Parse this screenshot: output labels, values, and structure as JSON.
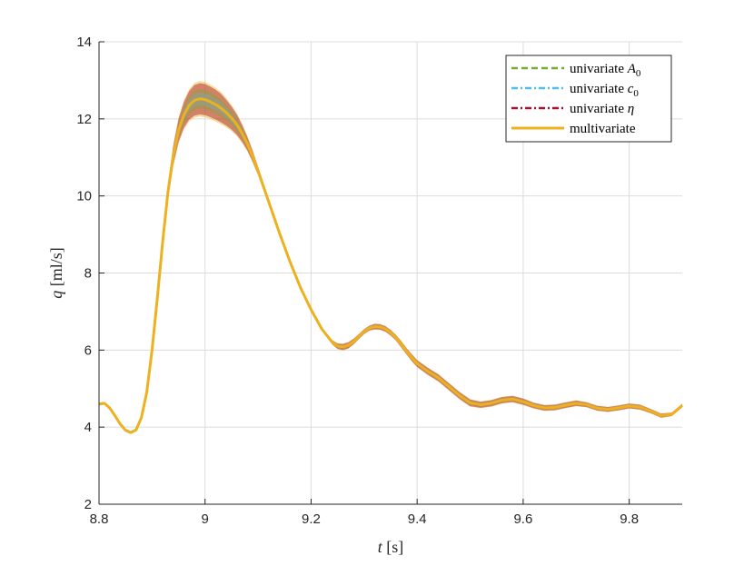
{
  "chart_data": {
    "type": "line",
    "xlabel": {
      "var": "t",
      "unit": " [s]"
    },
    "ylabel": {
      "var": "q",
      "unit": " [ml/s]"
    },
    "xlim": [
      8.8,
      9.9
    ],
    "ylim": [
      2,
      14
    ],
    "xticks": [
      8.8,
      9,
      9.2,
      9.4,
      9.6,
      9.8
    ],
    "xtick_labels": [
      "8.8",
      "9",
      "9.2",
      "9.4",
      "9.6",
      "9.8"
    ],
    "yticks": [
      2,
      4,
      6,
      8,
      10,
      12,
      14
    ],
    "ytick_labels": [
      "2",
      "4",
      "6",
      "8",
      "10",
      "12",
      "14"
    ],
    "grid": true,
    "legend_position": "top-right",
    "x": [
      8.8,
      8.81,
      8.82,
      8.83,
      8.84,
      8.85,
      8.86,
      8.87,
      8.88,
      8.89,
      8.9,
      8.91,
      8.92,
      8.93,
      8.94,
      8.95,
      8.96,
      8.97,
      8.98,
      8.99,
      9.0,
      9.01,
      9.02,
      9.03,
      9.04,
      9.05,
      9.06,
      9.07,
      9.08,
      9.09,
      9.1,
      9.12,
      9.14,
      9.16,
      9.18,
      9.2,
      9.22,
      9.24,
      9.25,
      9.26,
      9.27,
      9.28,
      9.29,
      9.3,
      9.31,
      9.32,
      9.33,
      9.34,
      9.35,
      9.36,
      9.37,
      9.38,
      9.39,
      9.4,
      9.42,
      9.44,
      9.46,
      9.48,
      9.5,
      9.52,
      9.54,
      9.56,
      9.58,
      9.6,
      9.62,
      9.64,
      9.66,
      9.68,
      9.7,
      9.72,
      9.74,
      9.76,
      9.78,
      9.8,
      9.82,
      9.84,
      9.86,
      9.88,
      9.9
    ],
    "band_halfwidth": [
      0.03,
      0.03,
      0.03,
      0.03,
      0.03,
      0.03,
      0.03,
      0.03,
      0.04,
      0.06,
      0.08,
      0.12,
      0.16,
      0.22,
      0.28,
      0.34,
      0.38,
      0.42,
      0.45,
      0.46,
      0.46,
      0.45,
      0.44,
      0.42,
      0.38,
      0.34,
      0.3,
      0.25,
      0.2,
      0.16,
      0.12,
      0.08,
      0.05,
      0.04,
      0.03,
      0.03,
      0.04,
      0.06,
      0.08,
      0.09,
      0.09,
      0.08,
      0.07,
      0.07,
      0.07,
      0.08,
      0.08,
      0.08,
      0.08,
      0.08,
      0.09,
      0.09,
      0.1,
      0.1,
      0.1,
      0.1,
      0.1,
      0.1,
      0.1,
      0.09,
      0.09,
      0.09,
      0.09,
      0.09,
      0.08,
      0.08,
      0.08,
      0.08,
      0.08,
      0.07,
      0.07,
      0.07,
      0.07,
      0.07,
      0.07,
      0.06,
      0.06,
      0.05,
      0.05
    ],
    "series": [
      {
        "label_main": "univariate ",
        "label_math": "A",
        "label_sub": "0",
        "color": "#77ac30",
        "dash": "7,4",
        "offset": 0.0,
        "y": [
          4.6,
          4.62,
          4.5,
          4.3,
          4.08,
          3.92,
          3.86,
          3.93,
          4.25,
          4.9,
          6.0,
          7.35,
          8.8,
          10.1,
          11.05,
          11.7,
          12.1,
          12.35,
          12.48,
          12.52,
          12.5,
          12.44,
          12.37,
          12.28,
          12.16,
          12.02,
          11.85,
          11.62,
          11.35,
          11.02,
          10.65,
          9.85,
          9.05,
          8.3,
          7.62,
          7.05,
          6.55,
          6.2,
          6.1,
          6.08,
          6.12,
          6.22,
          6.35,
          6.48,
          6.57,
          6.61,
          6.6,
          6.55,
          6.45,
          6.32,
          6.15,
          5.97,
          5.8,
          5.65,
          5.45,
          5.28,
          5.05,
          4.82,
          4.63,
          4.58,
          4.62,
          4.7,
          4.73,
          4.66,
          4.56,
          4.5,
          4.51,
          4.57,
          4.62,
          4.58,
          4.49,
          4.46,
          4.5,
          4.55,
          4.52,
          4.42,
          4.3,
          4.33,
          4.56
        ]
      },
      {
        "label_main": "univariate ",
        "label_math": "c",
        "label_sub": "0",
        "color": "#4dbeee",
        "dash": "7,3,2,3",
        "offset": 0.01,
        "y": [
          4.6,
          4.62,
          4.5,
          4.3,
          4.08,
          3.92,
          3.86,
          3.93,
          4.25,
          4.9,
          6.0,
          7.35,
          8.8,
          10.1,
          11.05,
          11.7,
          12.1,
          12.35,
          12.48,
          12.52,
          12.5,
          12.44,
          12.37,
          12.28,
          12.16,
          12.02,
          11.85,
          11.62,
          11.35,
          11.02,
          10.65,
          9.85,
          9.05,
          8.3,
          7.62,
          7.05,
          6.55,
          6.2,
          6.1,
          6.08,
          6.12,
          6.22,
          6.35,
          6.48,
          6.57,
          6.61,
          6.6,
          6.55,
          6.45,
          6.32,
          6.15,
          5.97,
          5.8,
          5.65,
          5.45,
          5.28,
          5.05,
          4.82,
          4.63,
          4.58,
          4.62,
          4.7,
          4.73,
          4.66,
          4.56,
          4.5,
          4.51,
          4.57,
          4.62,
          4.58,
          4.49,
          4.46,
          4.5,
          4.55,
          4.52,
          4.42,
          4.3,
          4.33,
          4.56
        ]
      },
      {
        "label_main": "univariate ",
        "label_math": "η",
        "label_sub": "",
        "color": "#a2142f",
        "dash": "7,3,2,3",
        "offset": -0.01,
        "y": [
          4.6,
          4.62,
          4.5,
          4.3,
          4.08,
          3.92,
          3.86,
          3.93,
          4.25,
          4.9,
          6.0,
          7.35,
          8.8,
          10.1,
          11.05,
          11.7,
          12.1,
          12.35,
          12.48,
          12.52,
          12.5,
          12.44,
          12.37,
          12.28,
          12.16,
          12.02,
          11.85,
          11.62,
          11.35,
          11.02,
          10.65,
          9.85,
          9.05,
          8.3,
          7.62,
          7.05,
          6.55,
          6.2,
          6.1,
          6.08,
          6.12,
          6.22,
          6.35,
          6.48,
          6.57,
          6.61,
          6.6,
          6.55,
          6.45,
          6.32,
          6.15,
          5.97,
          5.8,
          5.65,
          5.45,
          5.28,
          5.05,
          4.82,
          4.63,
          4.58,
          4.62,
          4.7,
          4.73,
          4.66,
          4.56,
          4.5,
          4.51,
          4.57,
          4.62,
          4.58,
          4.49,
          4.46,
          4.5,
          4.55,
          4.52,
          4.42,
          4.3,
          4.33,
          4.56
        ]
      },
      {
        "label_main": "multivariate",
        "label_math": "",
        "label_sub": "",
        "color": "#edb120",
        "dash": "",
        "offset": 0.0,
        "y": [
          4.6,
          4.62,
          4.5,
          4.3,
          4.08,
          3.92,
          3.86,
          3.93,
          4.25,
          4.9,
          6.0,
          7.35,
          8.8,
          10.1,
          11.05,
          11.7,
          12.1,
          12.35,
          12.48,
          12.52,
          12.5,
          12.44,
          12.37,
          12.28,
          12.16,
          12.02,
          11.85,
          11.62,
          11.35,
          11.02,
          10.65,
          9.85,
          9.05,
          8.3,
          7.62,
          7.05,
          6.55,
          6.2,
          6.1,
          6.08,
          6.12,
          6.22,
          6.35,
          6.48,
          6.57,
          6.61,
          6.6,
          6.55,
          6.45,
          6.32,
          6.15,
          5.97,
          5.8,
          5.65,
          5.45,
          5.28,
          5.05,
          4.82,
          4.63,
          4.58,
          4.62,
          4.7,
          4.73,
          4.66,
          4.56,
          4.5,
          4.51,
          4.57,
          4.62,
          4.58,
          4.49,
          4.46,
          4.5,
          4.55,
          4.52,
          4.42,
          4.3,
          4.33,
          4.56
        ]
      }
    ]
  }
}
